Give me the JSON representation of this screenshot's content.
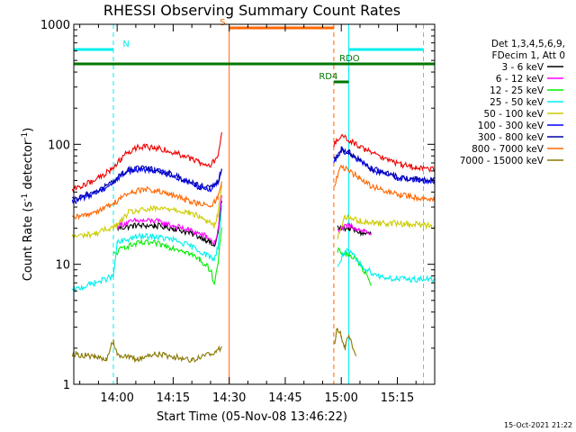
{
  "chart_data": {
    "type": "line",
    "title": "RHESSI Observing Summary Count Rates",
    "xlabel": "Start Time (05-Nov-08 13:46:22)",
    "ylabel": "Count Rate (s",
    "ylabel_sup": "-1",
    "ylabel_mid": " detector",
    "ylabel_end": ")",
    "y_scale": "log",
    "ylim": [
      1,
      1000
    ],
    "xlim_minutes": [
      -11.6,
      85.0
    ],
    "x_ticks": [
      {
        "m": 0,
        "label": "14:00"
      },
      {
        "m": 15,
        "label": "14:15"
      },
      {
        "m": 30,
        "label": "14:30"
      },
      {
        "m": 45,
        "label": "14:45"
      },
      {
        "m": 60,
        "label": "15:00"
      },
      {
        "m": 75,
        "label": "15:15"
      }
    ],
    "y_ticks": [
      {
        "v": 1,
        "label": "1"
      },
      {
        "v": 10,
        "label": "10"
      },
      {
        "v": 100,
        "label": "100"
      },
      {
        "v": 1000,
        "label": "1000"
      }
    ],
    "legend_header": [
      "Det 1,3,4,5,6,9,",
      "FDecim 1, Att 0"
    ],
    "footer_date": "15-Oct-2021 21:22",
    "series": [
      {
        "name": "3 - 6 keV",
        "color": "#000000",
        "points": [
          [
            0,
            20
          ],
          [
            5,
            21
          ],
          [
            10,
            21
          ],
          [
            15,
            20
          ],
          [
            20,
            18
          ],
          [
            24,
            16
          ],
          [
            26,
            14
          ],
          [
            27,
            18
          ],
          [
            28,
            35
          ],
          [
            59,
            20
          ],
          [
            62,
            20
          ],
          [
            64,
            19
          ],
          [
            66,
            18
          ],
          [
            68,
            18
          ]
        ]
      },
      {
        "name": "6 - 12 keV",
        "color": "#ff00ff",
        "points": [
          [
            0,
            21
          ],
          [
            5,
            23
          ],
          [
            10,
            23
          ],
          [
            15,
            21
          ],
          [
            20,
            19
          ],
          [
            24,
            17
          ],
          [
            26,
            15
          ],
          [
            27,
            19
          ],
          [
            28,
            38
          ],
          [
            59,
            19
          ],
          [
            62,
            21
          ],
          [
            64,
            20
          ],
          [
            66,
            19
          ],
          [
            68,
            18
          ]
        ]
      },
      {
        "name": "12 - 25 keV",
        "color": "#00ee00",
        "points": [
          [
            -1,
            12
          ],
          [
            2,
            14
          ],
          [
            6,
            15
          ],
          [
            10,
            15
          ],
          [
            14,
            14
          ],
          [
            18,
            13
          ],
          [
            22,
            11
          ],
          [
            25,
            9
          ],
          [
            26,
            7
          ],
          [
            27,
            10
          ],
          [
            28,
            20
          ],
          [
            59,
            13
          ],
          [
            62,
            12
          ],
          [
            64,
            11
          ],
          [
            66,
            9
          ],
          [
            68,
            7
          ]
        ]
      },
      {
        "name": "25 - 50 keV",
        "color": "#00eeee",
        "points": [
          [
            -12,
            6
          ],
          [
            -9,
            6.5
          ],
          [
            -6,
            7
          ],
          [
            -3,
            7.5
          ],
          [
            -1,
            8
          ],
          [
            0,
            15
          ],
          [
            5,
            17
          ],
          [
            10,
            17
          ],
          [
            15,
            16
          ],
          [
            20,
            14
          ],
          [
            24,
            12
          ],
          [
            26,
            11
          ],
          [
            27,
            14
          ],
          [
            28,
            30
          ],
          [
            59,
            9.5
          ],
          [
            61,
            13
          ],
          [
            63,
            12
          ],
          [
            65,
            10
          ],
          [
            67,
            9
          ],
          [
            70,
            8
          ],
          [
            75,
            7.5
          ],
          [
            85,
            7.5
          ]
        ]
      },
      {
        "name": "50 - 100 keV",
        "color": "#cccc00",
        "points": [
          [
            -12,
            17
          ],
          [
            -6,
            18
          ],
          [
            -2,
            20
          ],
          [
            0,
            21
          ],
          [
            3,
            27
          ],
          [
            6,
            28
          ],
          [
            10,
            29
          ],
          [
            15,
            29
          ],
          [
            19,
            27
          ],
          [
            22,
            25
          ],
          [
            24,
            23
          ],
          [
            26,
            21
          ],
          [
            27,
            26
          ],
          [
            28,
            45
          ],
          [
            59,
            17
          ],
          [
            61,
            25
          ],
          [
            63,
            24
          ],
          [
            65,
            23
          ],
          [
            70,
            22
          ],
          [
            75,
            22
          ],
          [
            85,
            21
          ]
        ]
      },
      {
        "name": "100 - 300 keV",
        "color": "#0000ff",
        "points": [
          [
            -12,
            33
          ],
          [
            -8,
            37
          ],
          [
            -4,
            42
          ],
          [
            -1,
            48
          ],
          [
            1,
            55
          ],
          [
            3,
            60
          ],
          [
            6,
            62
          ],
          [
            10,
            61
          ],
          [
            14,
            56
          ],
          [
            18,
            50
          ],
          [
            22,
            44
          ],
          [
            25,
            42
          ],
          [
            27,
            48
          ],
          [
            28,
            62
          ],
          [
            58,
            70
          ],
          [
            60,
            90
          ],
          [
            62,
            85
          ],
          [
            65,
            72
          ],
          [
            68,
            62
          ],
          [
            72,
            56
          ],
          [
            76,
            52
          ],
          [
            80,
            50
          ],
          [
            85,
            49
          ]
        ]
      },
      {
        "name": "300 - 800 keV",
        "color": "#0000aa",
        "points": [
          [
            -12,
            34
          ],
          [
            -8,
            38
          ],
          [
            -4,
            43
          ],
          [
            -1,
            49
          ],
          [
            1,
            56
          ],
          [
            3,
            61
          ],
          [
            6,
            63
          ],
          [
            10,
            62
          ],
          [
            14,
            57
          ],
          [
            18,
            51
          ],
          [
            22,
            45
          ],
          [
            25,
            43
          ],
          [
            27,
            49
          ],
          [
            28,
            63
          ],
          [
            58,
            72
          ],
          [
            60,
            92
          ],
          [
            62,
            86
          ],
          [
            65,
            74
          ],
          [
            68,
            63
          ],
          [
            72,
            57
          ],
          [
            76,
            53
          ],
          [
            80,
            51
          ],
          [
            85,
            50
          ]
        ]
      },
      {
        "name": "800 - 7000 keV",
        "color": "#ff6600",
        "points": [
          [
            -12,
            24
          ],
          [
            -8,
            26
          ],
          [
            -4,
            29
          ],
          [
            -1,
            32
          ],
          [
            1,
            36
          ],
          [
            4,
            40
          ],
          [
            7,
            42
          ],
          [
            10,
            41
          ],
          [
            14,
            38
          ],
          [
            18,
            35
          ],
          [
            22,
            32
          ],
          [
            25,
            30
          ],
          [
            27,
            36
          ],
          [
            28,
            50
          ],
          [
            58,
            45
          ],
          [
            60,
            65
          ],
          [
            62,
            60
          ],
          [
            65,
            52
          ],
          [
            68,
            45
          ],
          [
            72,
            40
          ],
          [
            76,
            38
          ],
          [
            80,
            36
          ],
          [
            85,
            35
          ]
        ]
      },
      {
        "name": "7000 - 15000 keV",
        "color": "#887700",
        "points": [
          [
            -12,
            1.8
          ],
          [
            -6,
            1.7
          ],
          [
            -3,
            1.6
          ],
          [
            -1,
            2.3
          ],
          [
            0,
            1.8
          ],
          [
            5,
            1.6
          ],
          [
            10,
            1.8
          ],
          [
            15,
            1.7
          ],
          [
            20,
            1.6
          ],
          [
            25,
            1.8
          ],
          [
            28,
            2.0
          ],
          [
            58,
            2.1
          ],
          [
            59,
            3.0
          ],
          [
            60,
            2.5
          ],
          [
            61,
            2.0
          ],
          [
            62,
            2.6
          ],
          [
            64,
            1.7
          ]
        ]
      }
    ],
    "red_series": {
      "color": "#ee0000",
      "points": [
        [
          -12,
          42
        ],
        [
          -8,
          47
        ],
        [
          -4,
          55
        ],
        [
          -1,
          63
        ],
        [
          1,
          76
        ],
        [
          3,
          87
        ],
        [
          6,
          95
        ],
        [
          10,
          94
        ],
        [
          14,
          88
        ],
        [
          18,
          80
        ],
        [
          22,
          70
        ],
        [
          25,
          66
        ],
        [
          27,
          80
        ],
        [
          28,
          130
        ],
        [
          58,
          100
        ],
        [
          60,
          120
        ],
        [
          62,
          110
        ],
        [
          65,
          95
        ],
        [
          68,
          85
        ],
        [
          72,
          75
        ],
        [
          76,
          68
        ],
        [
          80,
          64
        ],
        [
          85,
          62
        ]
      ]
    },
    "state_bars": [
      {
        "label": "N",
        "color": "#00eeee",
        "y_level": 0.93,
        "segments": [
          [
            -11.6,
            -1
          ],
          [
            62,
            82
          ]
        ],
        "label_m": 1.5
      },
      {
        "label": "S",
        "color": "#ff6600",
        "y_level": 0.99,
        "segments": [
          [
            30,
            58
          ]
        ],
        "label_m": 27.5
      },
      {
        "label": "RDO",
        "color": "#007700",
        "y_level": 0.89,
        "segments": [
          [
            -11.6,
            85
          ]
        ],
        "label_m": 59.5
      },
      {
        "label": "RD4",
        "color": "#007700",
        "y_level": 0.84,
        "segments": [
          [
            58,
            62
          ]
        ],
        "label_m": 54
      }
    ],
    "markers": [
      {
        "color": "#00eeee",
        "dashed": true,
        "m": -1
      },
      {
        "color": "#ff6600",
        "dashed": false,
        "m": 30
      },
      {
        "color": "#ff6600",
        "dashed": true,
        "m": 58
      },
      {
        "color": "#00eeee",
        "dashed": false,
        "m": 62
      },
      {
        "color": "#00eeee",
        "dashed": true,
        "m": 82
      }
    ]
  }
}
